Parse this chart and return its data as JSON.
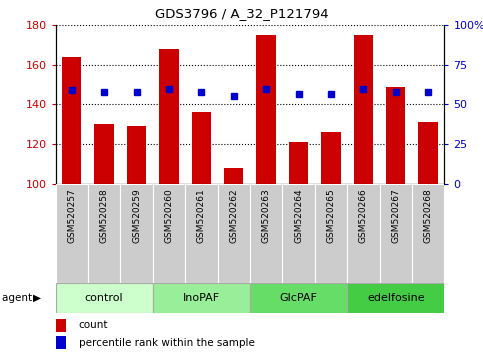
{
  "title": "GDS3796 / A_32_P121794",
  "samples": [
    "GSM520257",
    "GSM520258",
    "GSM520259",
    "GSM520260",
    "GSM520261",
    "GSM520262",
    "GSM520263",
    "GSM520264",
    "GSM520265",
    "GSM520266",
    "GSM520267",
    "GSM520268"
  ],
  "counts": [
    164,
    130,
    129,
    168,
    136,
    108,
    175,
    121,
    126,
    175,
    149,
    131
  ],
  "percentiles": [
    147,
    146,
    146,
    148,
    146,
    144,
    148,
    145,
    145,
    148,
    146,
    146
  ],
  "groups": [
    {
      "label": "control",
      "start": 0,
      "end": 3,
      "color": "#ccffcc"
    },
    {
      "label": "InoPAF",
      "start": 3,
      "end": 6,
      "color": "#99ee99"
    },
    {
      "label": "GlcPAF",
      "start": 6,
      "end": 9,
      "color": "#66dd66"
    },
    {
      "label": "edelfosine",
      "start": 9,
      "end": 12,
      "color": "#44cc44"
    }
  ],
  "ylim_left": [
    100,
    180
  ],
  "ylim_right": [
    0,
    100
  ],
  "yticks_left": [
    100,
    120,
    140,
    160,
    180
  ],
  "yticks_right": [
    0,
    25,
    50,
    75,
    100
  ],
  "bar_color": "#cc0000",
  "dot_color": "#0000cc",
  "bar_width": 0.6,
  "count_baseline": 100,
  "tick_bg_color": "#cccccc",
  "legend_square_size": 8
}
